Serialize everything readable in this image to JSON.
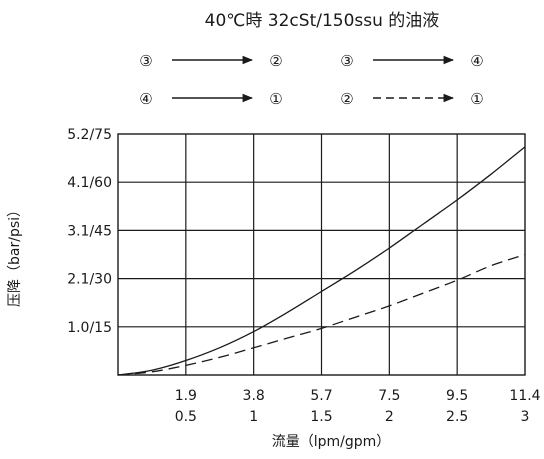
{
  "chart_data": {
    "type": "line",
    "title": "40℃時 32cSt/150ssu 的油液",
    "xlabel": "流量（lpm/gpm）",
    "ylabel": "压降（bar/psi）",
    "x_ticks_lpm": [
      "1.9",
      "3.8",
      "5.7",
      "7.5",
      "9.5",
      "11.4"
    ],
    "x_ticks_gpm": [
      "0.5",
      "1",
      "1.5",
      "2",
      "2.5",
      "3"
    ],
    "y_ticks": [
      "1.0/15",
      "2.1/30",
      "3.1/45",
      "4.1/60",
      "5.2/75"
    ],
    "xlim": [
      0,
      3
    ],
    "ylim": [
      0,
      75
    ],
    "grid": true,
    "legend": [
      {
        "from": "③",
        "to": "②",
        "style": "solid"
      },
      {
        "from": "③",
        "to": "④",
        "style": "solid"
      },
      {
        "from": "④",
        "to": "①",
        "style": "solid"
      },
      {
        "from": "②",
        "to": "①",
        "style": "dashed"
      }
    ],
    "series": [
      {
        "style": "solid",
        "x": [
          0,
          0.25,
          0.5,
          0.75,
          1.0,
          1.25,
          1.5,
          1.75,
          2.0,
          2.25,
          2.5,
          2.75,
          3.0
        ],
        "y": [
          0,
          1.5,
          4.5,
          8.5,
          13.5,
          19.5,
          26,
          32.5,
          39.5,
          47,
          54.5,
          62.5,
          71
        ]
      },
      {
        "style": "dashed",
        "x": [
          0,
          0.25,
          0.5,
          0.75,
          1.0,
          1.25,
          1.5,
          1.75,
          2.0,
          2.25,
          2.5,
          2.75,
          3.0
        ],
        "y": [
          0,
          1.0,
          3.0,
          5.5,
          8.5,
          11.5,
          14.5,
          18,
          21.5,
          25.5,
          29.5,
          34,
          37.5
        ]
      }
    ]
  }
}
